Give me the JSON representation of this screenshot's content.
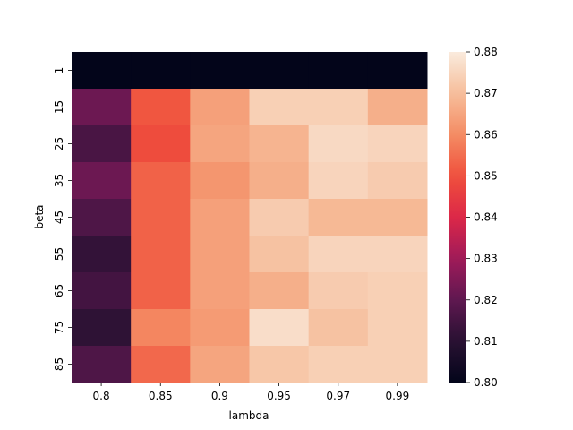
{
  "chart_data": {
    "type": "heatmap",
    "title": "",
    "xlabel": "lambda",
    "ylabel": "beta",
    "x_categories": [
      "0.8",
      "0.85",
      "0.9",
      "0.95",
      "0.97",
      "0.99"
    ],
    "y_categories": [
      "1",
      "15",
      "25",
      "35",
      "45",
      "55",
      "65",
      "75",
      "85"
    ],
    "values": [
      [
        0.8,
        0.8,
        0.8,
        0.8,
        0.8,
        0.8
      ],
      [
        0.822,
        0.851,
        0.864,
        0.874,
        0.874,
        0.867
      ],
      [
        0.816,
        0.849,
        0.865,
        0.868,
        0.876,
        0.875
      ],
      [
        0.822,
        0.853,
        0.862,
        0.867,
        0.875,
        0.873
      ],
      [
        0.817,
        0.853,
        0.864,
        0.873,
        0.869,
        0.869
      ],
      [
        0.812,
        0.853,
        0.864,
        0.871,
        0.875,
        0.875
      ],
      [
        0.815,
        0.853,
        0.864,
        0.867,
        0.873,
        0.874
      ],
      [
        0.811,
        0.859,
        0.863,
        0.877,
        0.871,
        0.874
      ],
      [
        0.817,
        0.854,
        0.865,
        0.872,
        0.874,
        0.874
      ]
    ],
    "colorbar": {
      "vmin": 0.8,
      "vmax": 0.88,
      "ticks": [
        "0.80",
        "0.81",
        "0.82",
        "0.83",
        "0.84",
        "0.85",
        "0.86",
        "0.87",
        "0.88"
      ],
      "colormap": "rocket"
    }
  }
}
